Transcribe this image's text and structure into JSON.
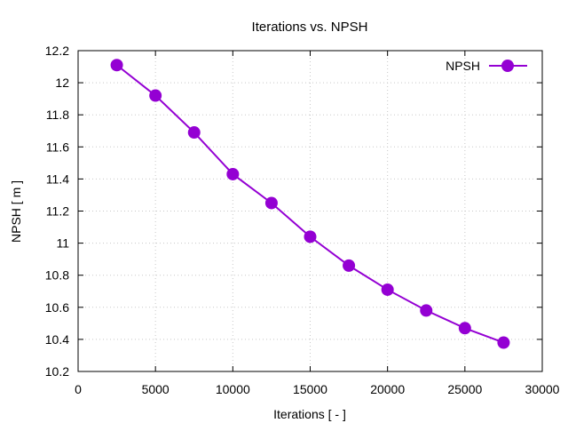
{
  "chart_data": {
    "type": "line",
    "title": "Iterations  vs. NPSH",
    "xlabel": "Iterations [ - ]",
    "ylabel": "NPSH [ m ]",
    "xlim": [
      0,
      30000
    ],
    "ylim": [
      10.2,
      12.2
    ],
    "xticks": [
      "0",
      "5000",
      "10000",
      "15000",
      "20000",
      "25000",
      "30000"
    ],
    "yticks": [
      "10.2",
      "10.4",
      "10.6",
      "10.8",
      "11",
      "11.2",
      "11.4",
      "11.6",
      "11.8",
      "12",
      "12.2"
    ],
    "grid": true,
    "legend_position": "top-right",
    "series": [
      {
        "name": "NPSH",
        "color": "#9400d3",
        "marker": "circle",
        "x": [
          2500,
          5000,
          7500,
          10000,
          12500,
          15000,
          17500,
          20000,
          22500,
          25000,
          27500
        ],
        "y": [
          12.11,
          11.92,
          11.69,
          11.43,
          11.25,
          11.04,
          10.86,
          10.71,
          10.58,
          10.47,
          10.38
        ]
      }
    ]
  }
}
